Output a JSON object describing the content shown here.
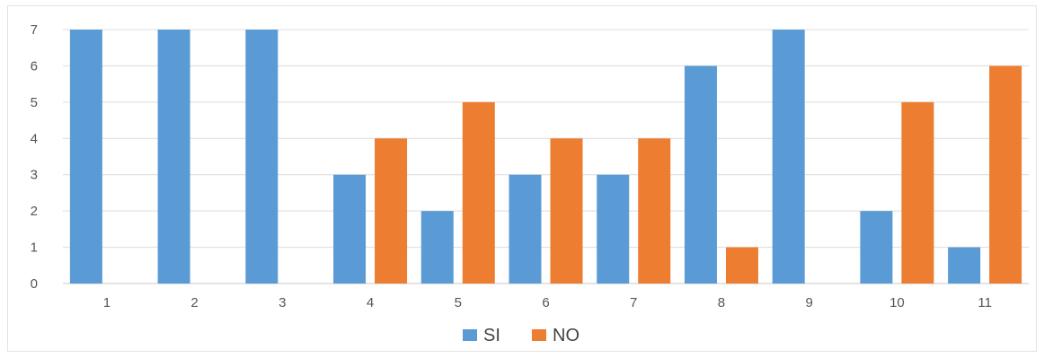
{
  "chart_data": {
    "type": "bar",
    "categories": [
      "1",
      "2",
      "3",
      "4",
      "5",
      "6",
      "7",
      "8",
      "9",
      "10",
      "11"
    ],
    "series": [
      {
        "name": "SI",
        "color": "#5b9bd5",
        "values": [
          7,
          7,
          7,
          3,
          2,
          3,
          3,
          6,
          7,
          2,
          1
        ]
      },
      {
        "name": "NO",
        "color": "#ed7d31",
        "values": [
          0,
          0,
          0,
          4,
          5,
          4,
          4,
          1,
          0,
          5,
          6
        ]
      }
    ],
    "yticks": [
      "0",
      "1",
      "2",
      "3",
      "4",
      "5",
      "6",
      "7"
    ],
    "ylim": [
      0,
      7
    ],
    "grid": true,
    "legend_position": "bottom-center"
  }
}
